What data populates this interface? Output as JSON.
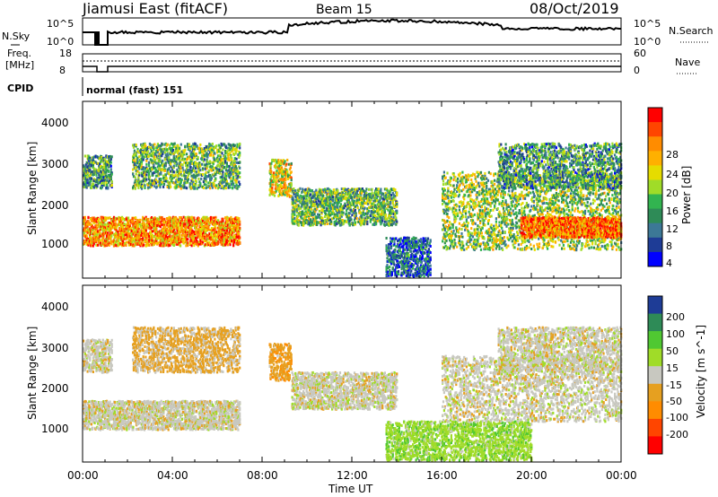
{
  "header": {
    "station": "Jiamusi East (fitACF)",
    "beam": "Beam 15",
    "date": "08/Oct/2019"
  },
  "noise_panel": {
    "left_label": "N.Sky",
    "right_label": "N.Search",
    "left_ticks": [
      "10^5",
      "10^0"
    ],
    "right_ticks": [
      "10^5",
      "10^0"
    ]
  },
  "freq_panel": {
    "left_label_1": "Freq.",
    "left_label_2": "[MHz]",
    "left_ticks": [
      "18",
      "8"
    ],
    "right_label": "Nave",
    "right_ticks": [
      "60",
      "0"
    ]
  },
  "cpid_panel": {
    "label": "CPID",
    "mode": "normal (fast) 151"
  },
  "axes": {
    "ylabel": "Slant Range [km]",
    "yticks": [
      "4000",
      "3000",
      "2000",
      "1000"
    ],
    "xticks": [
      "00:00",
      "04:00",
      "08:00",
      "12:00",
      "16:00",
      "20:00",
      "00:00"
    ],
    "xlabel": "Time UT"
  },
  "power_colorbar": {
    "label": "Power [dB]",
    "ticks": [
      "28",
      "24",
      "20",
      "16",
      "12",
      "8",
      "4"
    ],
    "colors": [
      "#ff0000",
      "#ff4500",
      "#ff8c00",
      "#ffb000",
      "#e6dc00",
      "#a0dc28",
      "#32b450",
      "#2e8b57",
      "#3c7896",
      "#1e3c96",
      "#0000ff"
    ]
  },
  "velocity_colorbar": {
    "label": "Velocity [m s^-1]",
    "ticks": [
      "200",
      "100",
      "50",
      "15",
      "-15",
      "-50",
      "-100",
      "-200"
    ],
    "colors": [
      "#1e3c96",
      "#2e8b57",
      "#50c832",
      "#a0dc28",
      "#c8c8c0",
      "#e6a020",
      "#ff8c00",
      "#ff4500",
      "#ff0000"
    ]
  },
  "chart_data": [
    {
      "type": "heatmap",
      "title": "Power",
      "ylabel": "Slant Range [km]",
      "xlabel": "Time UT",
      "xlim": [
        0,
        24
      ],
      "ylim": [
        180,
        4500
      ],
      "bands": [
        {
          "t0": 0.0,
          "t1": 7.0,
          "r0": 1000,
          "r1": 1700,
          "value": 22
        },
        {
          "t0": 0.0,
          "t1": 1.3,
          "r0": 2400,
          "r1": 3200,
          "value": 10
        },
        {
          "t0": 2.2,
          "t1": 7.0,
          "r0": 2400,
          "r1": 3500,
          "value": 12
        },
        {
          "t0": 8.3,
          "t1": 9.3,
          "r0": 2200,
          "r1": 3100,
          "value": 18
        },
        {
          "t0": 9.3,
          "t1": 14.0,
          "r0": 1500,
          "r1": 2400,
          "value": 12
        },
        {
          "t0": 13.5,
          "t1": 15.5,
          "r0": 250,
          "r1": 1200,
          "value": 6
        },
        {
          "t0": 16.0,
          "t1": 24.0,
          "r0": 900,
          "r1": 2800,
          "value": 14
        },
        {
          "t0": 19.5,
          "t1": 24.0,
          "r0": 1200,
          "r1": 1700,
          "value": 24
        },
        {
          "t0": 18.5,
          "t1": 24.0,
          "r0": 2400,
          "r1": 3500,
          "value": 10
        }
      ]
    },
    {
      "type": "heatmap",
      "title": "Velocity",
      "ylabel": "Slant Range [km]",
      "xlabel": "Time UT",
      "xlim": [
        0,
        24
      ],
      "ylim": [
        180,
        4500
      ],
      "bands": [
        {
          "t0": 0.0,
          "t1": 7.0,
          "r0": 1000,
          "r1": 1700,
          "value": 0
        },
        {
          "t0": 0.0,
          "t1": 1.3,
          "r0": 2400,
          "r1": 3200,
          "value": 0
        },
        {
          "t0": 2.2,
          "t1": 7.0,
          "r0": 2400,
          "r1": 3500,
          "value": -40
        },
        {
          "t0": 8.3,
          "t1": 9.3,
          "r0": 2200,
          "r1": 3100,
          "value": -60
        },
        {
          "t0": 9.3,
          "t1": 14.0,
          "r0": 1500,
          "r1": 2400,
          "value": 0
        },
        {
          "t0": 13.5,
          "t1": 20.0,
          "r0": 250,
          "r1": 1200,
          "value": 60
        },
        {
          "t0": 16.0,
          "t1": 24.0,
          "r0": 1200,
          "r1": 2800,
          "value": 0
        },
        {
          "t0": 18.5,
          "t1": 24.0,
          "r0": 2400,
          "r1": 3500,
          "value": 0
        }
      ]
    }
  ]
}
